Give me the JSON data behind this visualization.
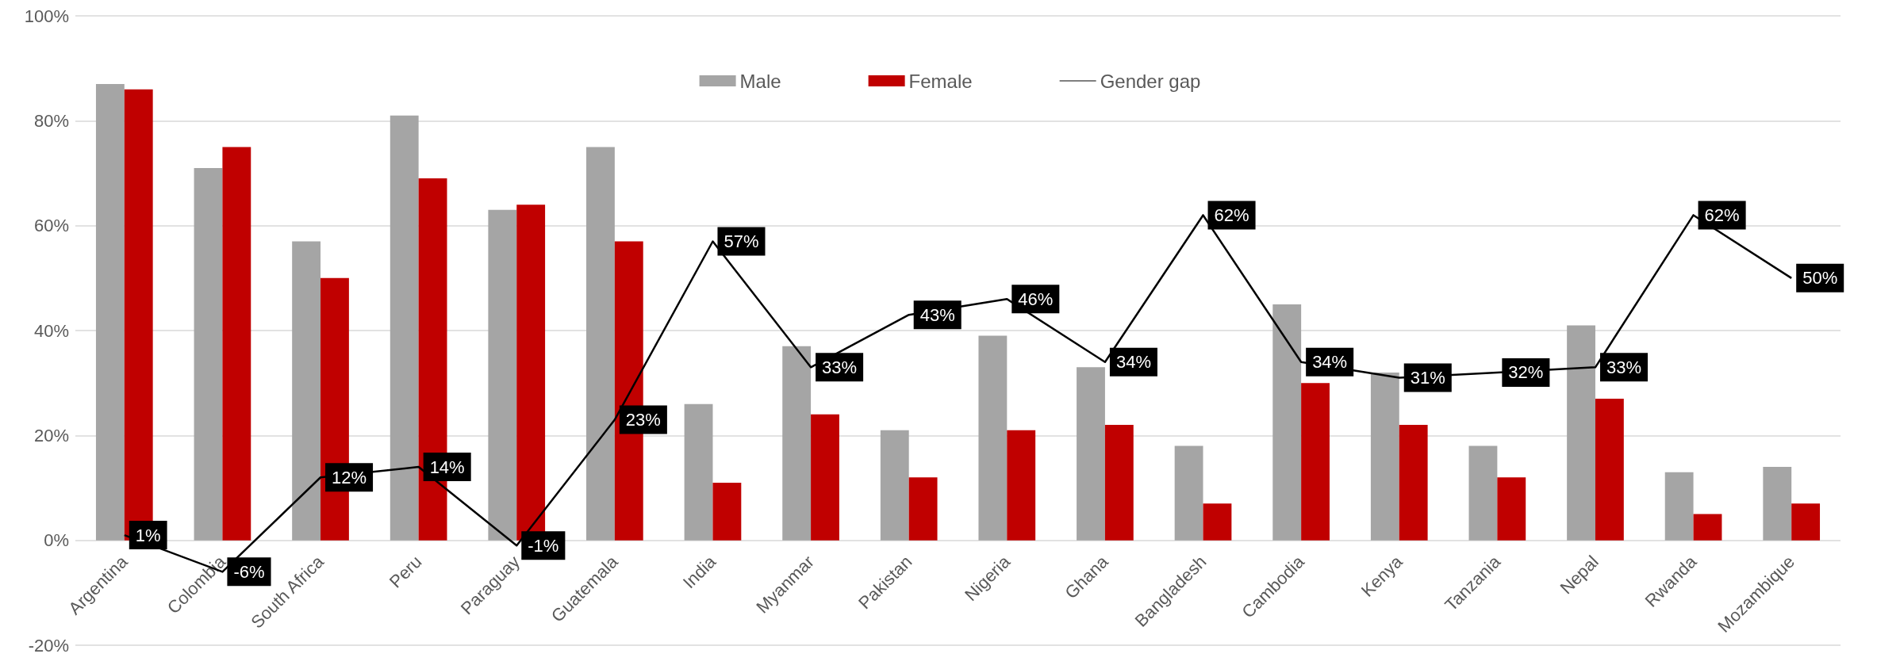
{
  "chart_data": {
    "type": "bar",
    "categories": [
      "Argentina",
      "Colombia",
      "South Africa",
      "Peru",
      "Paraguay",
      "Guatemala",
      "India",
      "Myanmar",
      "Pakistan",
      "Nigeria",
      "Ghana",
      "Bangladesh",
      "Cambodia",
      "Kenya",
      "Tanzania",
      "Nepal",
      "Rwanda",
      "Mozambique"
    ],
    "series": [
      {
        "name": "Male",
        "color": "#a5a5a5",
        "values": [
          87,
          71,
          57,
          81,
          63,
          75,
          26,
          37,
          21,
          39,
          33,
          18,
          45,
          32,
          18,
          41,
          13,
          14
        ]
      },
      {
        "name": "Female",
        "color": "#c00000",
        "values": [
          86,
          75,
          50,
          69,
          64,
          57,
          11,
          24,
          12,
          21,
          22,
          7,
          30,
          22,
          12,
          27,
          5,
          7
        ]
      },
      {
        "name": "Gender gap",
        "type": "line",
        "color": "#000000",
        "values": [
          1,
          -6,
          12,
          14,
          -1,
          23,
          57,
          33,
          43,
          46,
          34,
          62,
          34,
          31,
          32,
          33,
          62,
          50
        ],
        "value_labels": [
          "1%",
          "-6%",
          "12%",
          "14%",
          "-1%",
          "23%",
          "57%",
          "33%",
          "43%",
          "46%",
          "34%",
          "62%",
          "34%",
          "31%",
          "32%",
          "33%",
          "62%",
          "50%"
        ]
      }
    ],
    "ylim": [
      -20,
      100
    ],
    "yticks": [
      {
        "value": -20,
        "label": "-20%"
      },
      {
        "value": 0,
        "label": "0%"
      },
      {
        "value": 20,
        "label": "20%"
      },
      {
        "value": 40,
        "label": "40%"
      },
      {
        "value": 60,
        "label": "60%"
      },
      {
        "value": 80,
        "label": "80%"
      },
      {
        "value": 100,
        "label": "100%"
      }
    ],
    "grid": true,
    "legend": "top",
    "marker": "none",
    "line_style": "solid"
  }
}
